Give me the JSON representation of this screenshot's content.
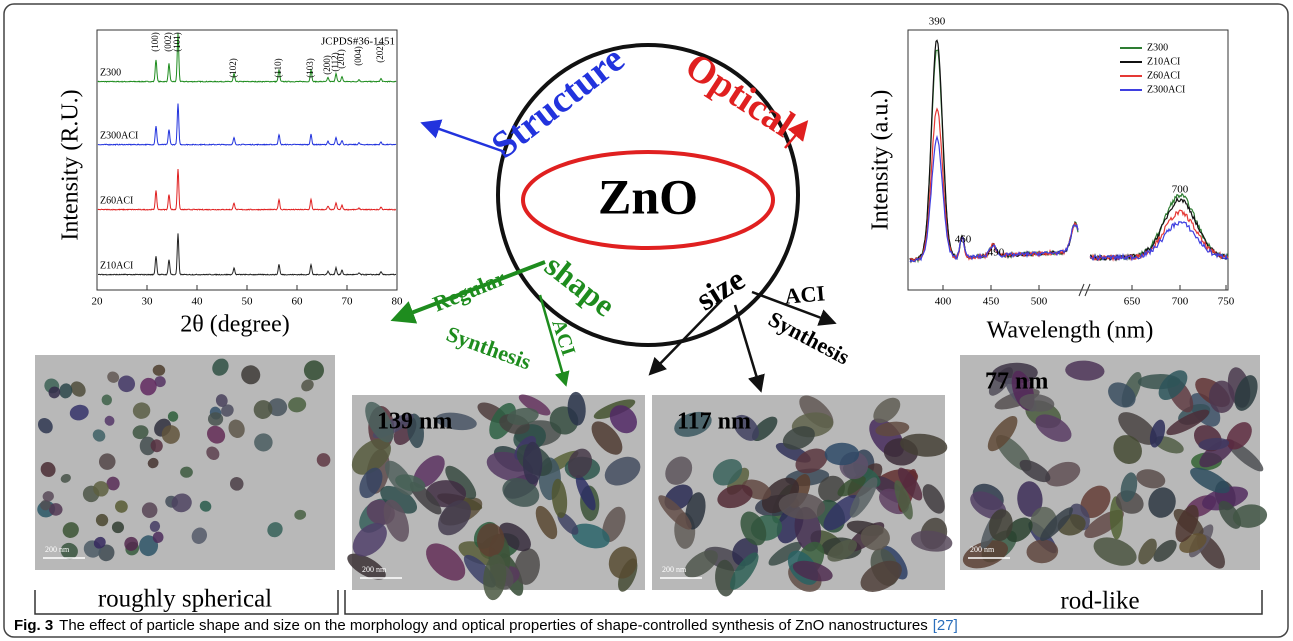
{
  "xrd": {
    "y_label": "Intensity (R.U.)",
    "x_label": "2θ (degree)",
    "reference": "JCPDS#36-1451",
    "x_ticks": [
      20,
      30,
      40,
      50,
      60,
      70,
      80
    ],
    "samples": [
      "Z300",
      "Z300ACI",
      "Z60ACI",
      "Z10ACI"
    ],
    "peaks": [
      "(100)",
      "(002)",
      "(101)",
      "(102)",
      "(110)",
      "(103)",
      "(200)",
      "(112)",
      "(201)",
      "(004)",
      "(202)"
    ]
  },
  "pl": {
    "y_label": "Intensity (a.u.)",
    "x_label": "Wavelength (nm)",
    "x_ticks": [
      400,
      450,
      500,
      650,
      700,
      750
    ],
    "legend": [
      {
        "name": "Z300",
        "color": "#2e7d32"
      },
      {
        "name": "Z10ACI",
        "color": "#111111"
      },
      {
        "name": "Z60ACI",
        "color": "#e53935"
      },
      {
        "name": "Z300ACI",
        "color": "#3f3fe0"
      }
    ],
    "peak_labels": [
      390,
      460,
      490,
      700
    ]
  },
  "diagram": {
    "center": "ZnO",
    "structure": "Structure",
    "optical": "Optical",
    "shape": "shape",
    "size": "size",
    "regular": "Regular",
    "synthesis_left": "Synthesis",
    "aci_left": "ACI",
    "aci_right": "ACI",
    "synthesis_right": "Synthesis"
  },
  "images": [
    {
      "scale": "200 nm"
    },
    {
      "size": "139 nm",
      "scale": "200 nm"
    },
    {
      "size": "117 nm",
      "scale": "200 nm"
    },
    {
      "size": "77 nm",
      "scale": "200 nm"
    }
  ],
  "morphology": [
    "roughly spherical",
    "rod-like"
  ],
  "caption": {
    "label": "Fig. 3",
    "text": "The effect of particle shape and size on the morphology and optical properties of shape-controlled synthesis of ZnO nanostructures",
    "ref": "[27]"
  }
}
